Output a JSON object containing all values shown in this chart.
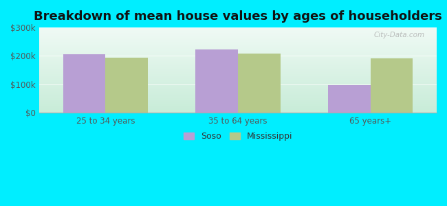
{
  "title": "Breakdown of mean house values by ages of householders",
  "categories": [
    "25 to 34 years",
    "35 to 64 years",
    "65 years+"
  ],
  "soso_values": [
    207000,
    222000,
    98000
  ],
  "mississippi_values": [
    193000,
    208000,
    192000
  ],
  "bar_color_soso": "#b89fd4",
  "bar_color_mississippi": "#b5c98a",
  "ylim": [
    0,
    300000
  ],
  "yticks": [
    0,
    100000,
    200000,
    300000
  ],
  "ytick_labels": [
    "$0",
    "$100k",
    "$200k",
    "$300k"
  ],
  "background_color_fig": "#00eeff",
  "title_fontsize": 13,
  "legend_labels": [
    "Soso",
    "Mississippi"
  ],
  "bar_width": 0.32,
  "watermark": "City-Data.com",
  "grad_top": "#e8f5f0",
  "grad_bottom": "#d0ede0"
}
